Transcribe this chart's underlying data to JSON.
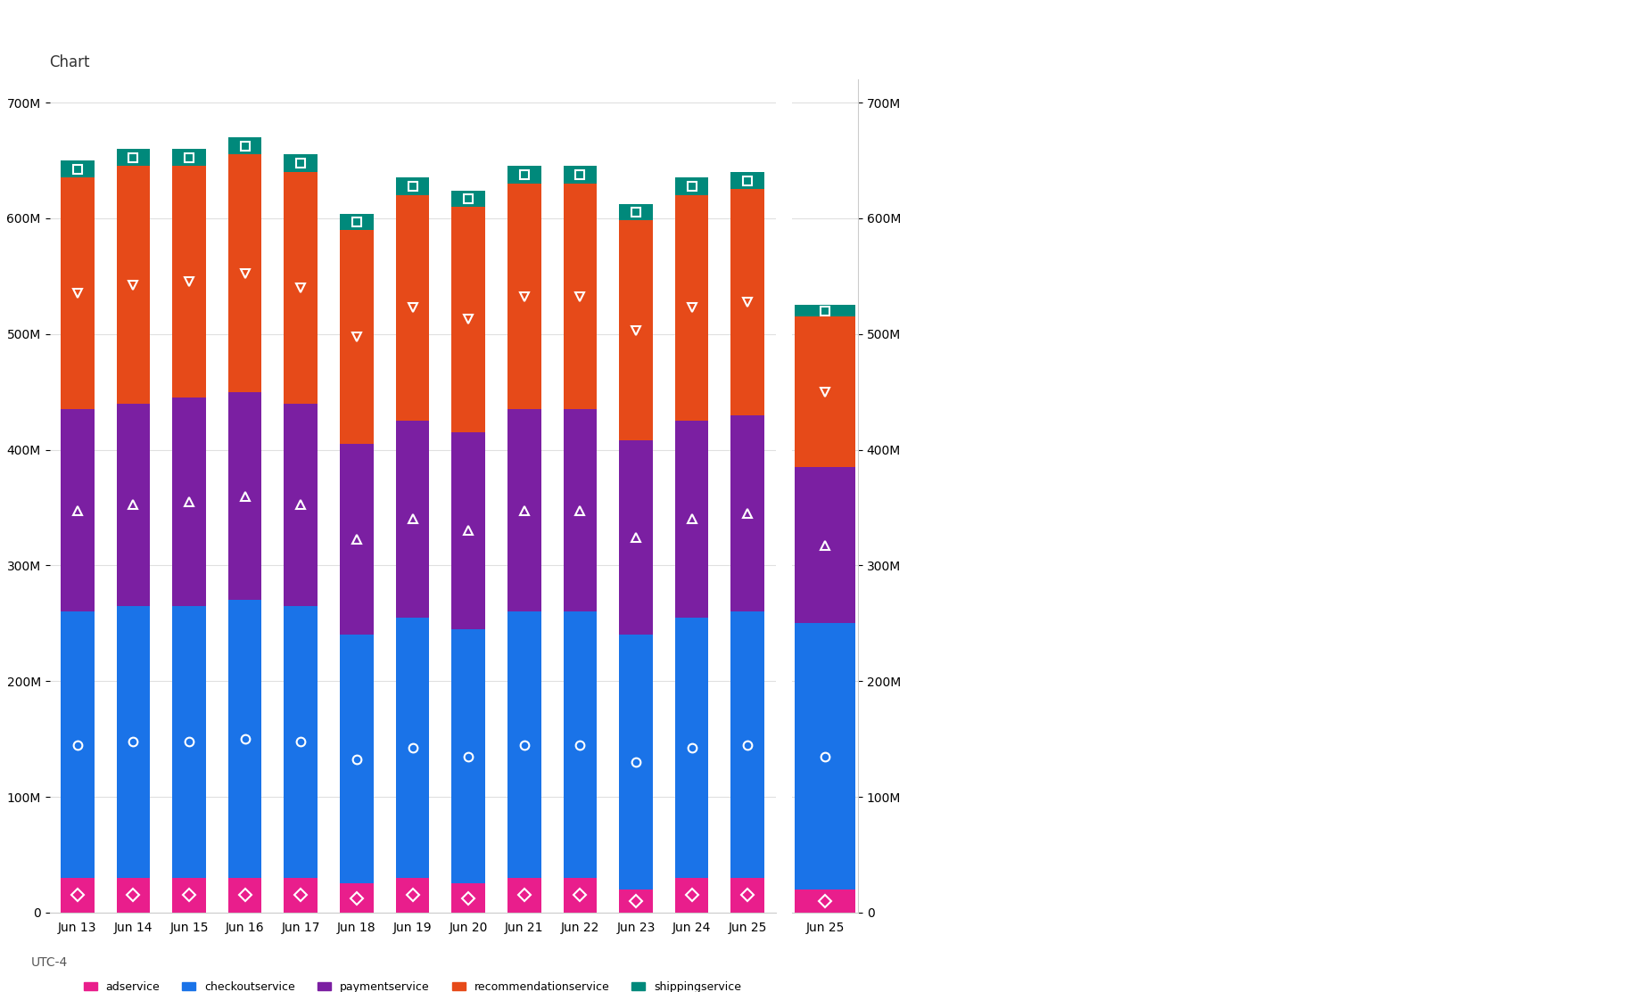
{
  "title": "Chart",
  "x_labels": [
    "Jun 13",
    "Jun 14",
    "Jun 15",
    "Jun 16",
    "Jun 17",
    "Jun 18",
    "Jun 19",
    "Jun 20",
    "Jun 21",
    "Jun 22",
    "Jun 23",
    "Jun 24",
    "Jun 25"
  ],
  "x_label_first": "UTC-4",
  "y_ticks": [
    0,
    100,
    200,
    300,
    400,
    500,
    600,
    700
  ],
  "y_tick_labels": [
    "0",
    "100M",
    "200M",
    "300M",
    "400M",
    "500M",
    "600M",
    "700M"
  ],
  "ylim": [
    0,
    720
  ],
  "series": [
    {
      "name": "adservice",
      "color": "#e91e8c",
      "marker": "D",
      "values": [
        30,
        30,
        30,
        30,
        30,
        25,
        30,
        25,
        30,
        30,
        20,
        30,
        30
      ]
    },
    {
      "name": "checkoutservice",
      "color": "#1a73e8",
      "marker": "o",
      "values": [
        230,
        235,
        235,
        240,
        235,
        215,
        225,
        220,
        230,
        230,
        220,
        225,
        230
      ]
    },
    {
      "name": "paymentservice",
      "color": "#7b1fa2",
      "marker": "^",
      "values": [
        175,
        175,
        180,
        180,
        175,
        165,
        170,
        170,
        175,
        175,
        168,
        170,
        170
      ]
    },
    {
      "name": "recommendationservice",
      "color": "#e64a19",
      "marker": "v",
      "values": [
        200,
        205,
        200,
        205,
        200,
        185,
        195,
        195,
        195,
        195,
        190,
        195,
        195
      ]
    },
    {
      "name": "shippingservice",
      "color": "#00897b",
      "marker": "s",
      "values": [
        15,
        15,
        15,
        15,
        15,
        14,
        15,
        14,
        15,
        15,
        14,
        15,
        15
      ]
    }
  ],
  "right_panel_bar_values": {
    "adservice": 20,
    "checkoutservice": 230,
    "paymentservice": 135,
    "recommendationservice": 130,
    "shippingservice": 10
  },
  "background_color": "#ffffff",
  "grid_color": "#e0e0e0",
  "bar_width": 0.6,
  "title_fontsize": 12,
  "axis_fontsize": 10,
  "legend_fontsize": 9
}
